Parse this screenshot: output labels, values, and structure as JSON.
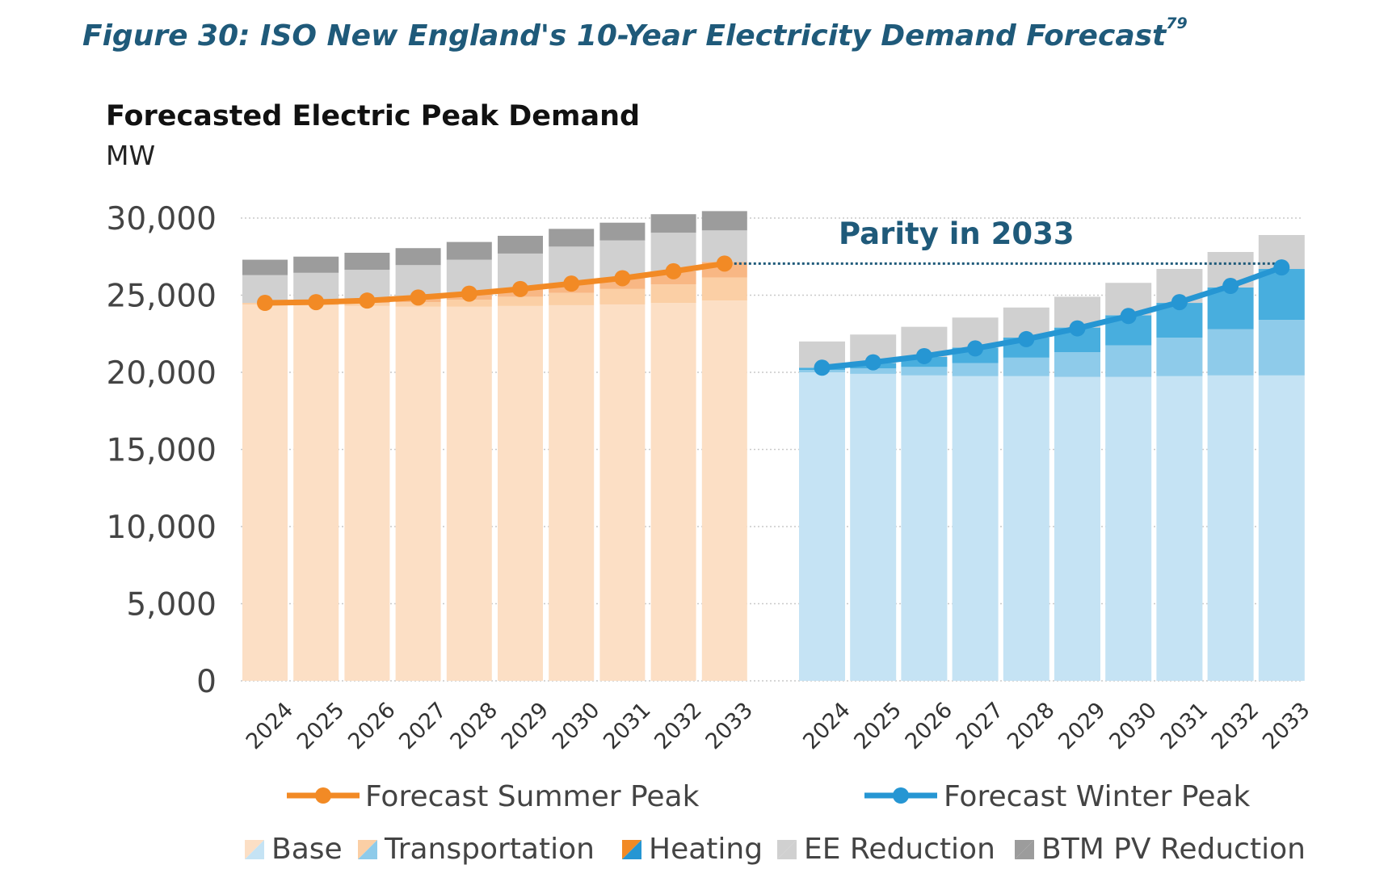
{
  "figure": {
    "caption": "Figure 30: ISO New England's 10-Year Electricity Demand Forecast",
    "footnote": "79"
  },
  "chart_data": {
    "type": "bar",
    "title": "Forecasted Electric Peak Demand",
    "unit_label": "MW",
    "ylim": [
      0,
      30000
    ],
    "yticks": [
      "0",
      "5,000",
      "10,000",
      "15,000",
      "20,000",
      "25,000",
      "30,000"
    ],
    "grid": true,
    "stacked": true,
    "categories": [
      "2024",
      "2025",
      "2026",
      "2027",
      "2028",
      "2029",
      "2030",
      "2031",
      "2032",
      "2033"
    ],
    "annotation": "Parity in 2033",
    "colors": {
      "summer_base": "#fcdfc5",
      "summer_transportation": "#fbcfa5",
      "summer_heating": "#f8b784",
      "winter_base": "#c5e3f4",
      "winter_transportation": "#8ecbea",
      "winter_heating": "#48aede",
      "ee_reduction": "#d0d0d0",
      "btm_pv_reduction": "#9c9c9c",
      "summer_line": "#f28a25",
      "winter_line": "#2696d3"
    },
    "panels": [
      {
        "name": "summer",
        "stack_series": [
          {
            "name": "Base",
            "values": [
              24400,
              24350,
              24300,
              24250,
              24250,
              24300,
              24350,
              24400,
              24500,
              24650
            ]
          },
          {
            "name": "Transportation",
            "values": [
              100,
              150,
              200,
              300,
              450,
              600,
              800,
              1000,
              1200,
              1500
            ]
          },
          {
            "name": "Heating",
            "values": [
              0,
              50,
              150,
              300,
              400,
              500,
              600,
              700,
              850,
              1000
            ]
          },
          {
            "name": "EE Reduction",
            "values": [
              1800,
              1900,
              2000,
              2100,
              2200,
              2300,
              2400,
              2450,
              2500,
              2050
            ]
          },
          {
            "name": "BTM PV Reduction",
            "values": [
              1000,
              1050,
              1100,
              1100,
              1150,
              1150,
              1150,
              1150,
              1200,
              1250
            ]
          }
        ],
        "line": {
          "name": "Forecast Summer Peak",
          "values": [
            24500,
            24550,
            24650,
            24850,
            25100,
            25400,
            25750,
            26100,
            26550,
            27050
          ]
        }
      },
      {
        "name": "winter",
        "stack_series": [
          {
            "name": "Base",
            "values": [
              20000,
              19900,
              19800,
              19750,
              19750,
              19700,
              19700,
              19750,
              19800,
              19800
            ]
          },
          {
            "name": "Transportation",
            "values": [
              150,
              350,
              550,
              850,
              1200,
              1600,
              2050,
              2500,
              3000,
              3600
            ]
          },
          {
            "name": "Heating",
            "values": [
              150,
              350,
              650,
              1000,
              1300,
              1600,
              1950,
              2250,
              2700,
              3300
            ]
          },
          {
            "name": "EE Reduction",
            "values": [
              1700,
              1850,
              1950,
              1950,
              1950,
              2000,
              2100,
              2200,
              2300,
              2200
            ]
          },
          {
            "name": "BTM PV Reduction",
            "values": [
              0,
              0,
              0,
              0,
              0,
              0,
              0,
              0,
              0,
              0
            ]
          }
        ],
        "line": {
          "name": "Forecast Winter Peak",
          "values": [
            20300,
            20650,
            21050,
            21550,
            22150,
            22850,
            23650,
            24550,
            25600,
            26800
          ]
        }
      }
    ],
    "legend": {
      "lines": [
        "Forecast Summer Peak",
        "Forecast Winter Peak"
      ],
      "stacks": [
        "Base",
        "Transportation",
        "Heating",
        "EE Reduction",
        "BTM PV Reduction"
      ],
      "placement": "bottom"
    }
  }
}
